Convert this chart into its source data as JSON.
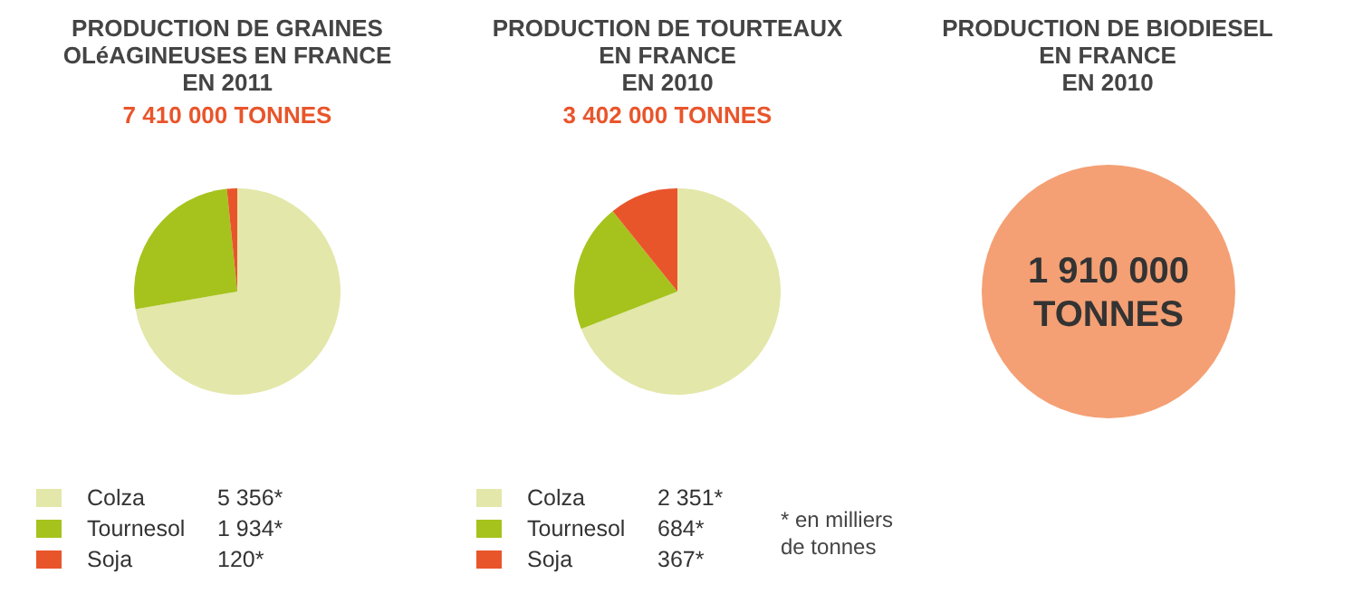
{
  "chart_data": [
    {
      "type": "pie",
      "title": "PRODUCTION DE GRAINES\nOLéAGINEUSES EN FRANCE\nEN 2011",
      "subtitle": "7 410 000 TONNES",
      "categories": [
        "Colza",
        "Tournesol",
        "Soja"
      ],
      "values": [
        5356,
        1934,
        120
      ],
      "value_labels": [
        "5 356*",
        "1 934*",
        "120*"
      ],
      "colors": [
        "#e3e7a9",
        "#a5c31c",
        "#e9552b"
      ],
      "legend": "bottom"
    },
    {
      "type": "pie",
      "title": "PRODUCTION DE TOURTEAUX\nEN FRANCE\nEN 2010",
      "subtitle": "3 402 000 TONNES",
      "categories": [
        "Colza",
        "Tournesol",
        "Soja"
      ],
      "values": [
        2351,
        684,
        367
      ],
      "value_labels": [
        "2 351*",
        "684*",
        "367*"
      ],
      "colors": [
        "#e3e7a9",
        "#a5c31c",
        "#e9552b"
      ],
      "legend": "bottom",
      "annotations": [
        "* en milliers\nde tonnes"
      ]
    },
    {
      "type": "other",
      "title": "PRODUCTION DE BIODIESEL\nEN FRANCE\nEN 2010",
      "annotations": [
        "1 910 000\nTONNES"
      ],
      "color": "#f4a074"
    }
  ]
}
